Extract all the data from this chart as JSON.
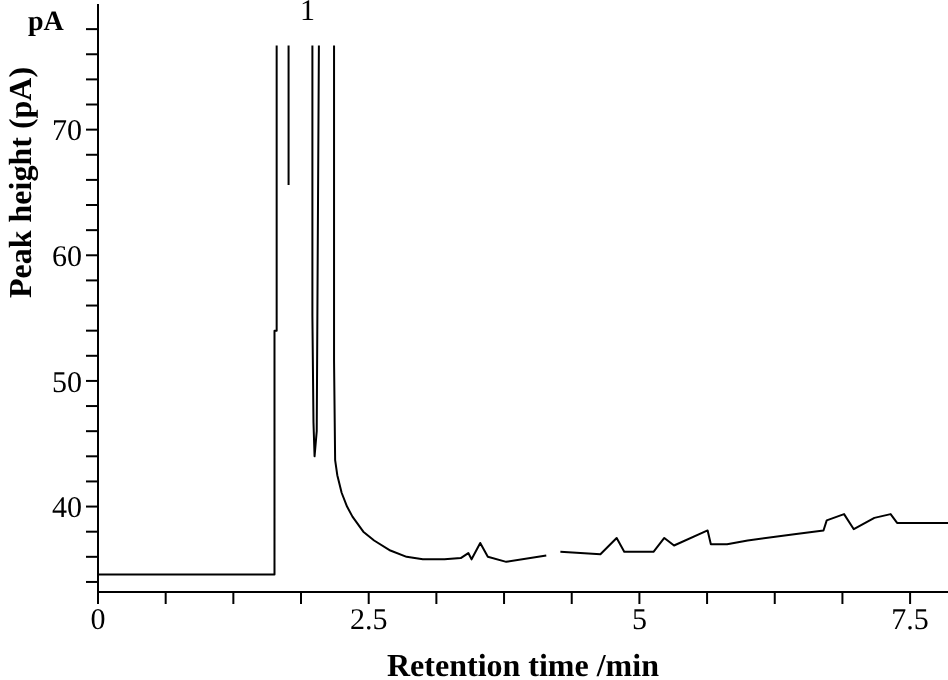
{
  "chart_data": {
    "type": "line",
    "xlabel": "Retention time /min",
    "ylabel": "Peak height (pA)",
    "annotations": [
      "pA",
      "1"
    ],
    "x": [
      0,
      1.63,
      1.63,
      1.65,
      1.65,
      1.7,
      1.76,
      1.76,
      1.8,
      1.98,
      1.98,
      1.99,
      2.0,
      2.02,
      2.04,
      2.1,
      2.18,
      2.18,
      2.19,
      2.21,
      2.25,
      2.3,
      2.35,
      2.45,
      2.55,
      2.7,
      2.85,
      3.0,
      3.2,
      3.35,
      3.42,
      3.45,
      3.53,
      3.6,
      3.77,
      4.14,
      4.2,
      4.27,
      4.64,
      4.79,
      4.86,
      5.13,
      5.23,
      5.32,
      5.63,
      5.66,
      5.81,
      6.0,
      6.43,
      6.7,
      6.73,
      6.89,
      6.98,
      7.17,
      7.32,
      7.38,
      7.66,
      7.85
    ],
    "series": [
      {
        "color": "#000000",
        "values": [
          34.6,
          34.6,
          54,
          54,
          76.7,
          null,
          76.7,
          65.6,
          null,
          76.7,
          55.2,
          46.7,
          44,
          46,
          76.7,
          null,
          76.7,
          51.6,
          43.7,
          42.5,
          41.1,
          40,
          39.2,
          38,
          37.3,
          36.5,
          36,
          35.8,
          35.8,
          35.9,
          36.3,
          35.8,
          37.1,
          36,
          35.6,
          36.1,
          null,
          36.4,
          36.2,
          37.5,
          36.4,
          36.4,
          37.5,
          36.9,
          38.1,
          37,
          37,
          37.3,
          37.8,
          38.1,
          38.9,
          39.4,
          38.2,
          39.1,
          39.4,
          38.7,
          38.7,
          38.7
        ]
      }
    ],
    "xlim": [
      0,
      7.85
    ],
    "ylim": [
      33.2,
      80
    ],
    "xticks": [
      0,
      {
        "value": 0.625,
        "label": null
      },
      {
        "value": 1.25,
        "label": null
      },
      {
        "value": 1.875,
        "label": null
      },
      2.5,
      {
        "value": 3.125,
        "label": null
      },
      {
        "value": 3.75,
        "label": null
      },
      {
        "value": 4.375,
        "label": null
      },
      5,
      {
        "value": 5.625,
        "label": null
      },
      {
        "value": 6.25,
        "label": null
      },
      {
        "value": 6.875,
        "label": null
      },
      7.5
    ],
    "yticks": [
      {
        "value": 34,
        "label": null
      },
      {
        "value": 36,
        "label": null
      },
      {
        "value": 38,
        "label": null
      },
      40,
      {
        "value": 42,
        "label": null
      },
      {
        "value": 44,
        "label": null
      },
      {
        "value": 46,
        "label": null
      },
      {
        "value": 48,
        "label": null
      },
      50,
      {
        "value": 52,
        "label": null
      },
      {
        "value": 54,
        "label": null
      },
      {
        "value": 56,
        "label": null
      },
      {
        "value": 58,
        "label": null
      },
      60,
      {
        "value": 62,
        "label": null
      },
      {
        "value": 64,
        "label": null
      },
      {
        "value": 66,
        "label": null
      },
      {
        "value": 68,
        "label": null
      },
      70,
      {
        "value": 72,
        "label": null
      },
      {
        "value": 74,
        "label": null
      },
      {
        "value": 76,
        "label": null
      },
      {
        "value": 78,
        "label": null
      }
    ],
    "grid": false,
    "legend": false,
    "marker": "none",
    "line_style": "solid"
  }
}
